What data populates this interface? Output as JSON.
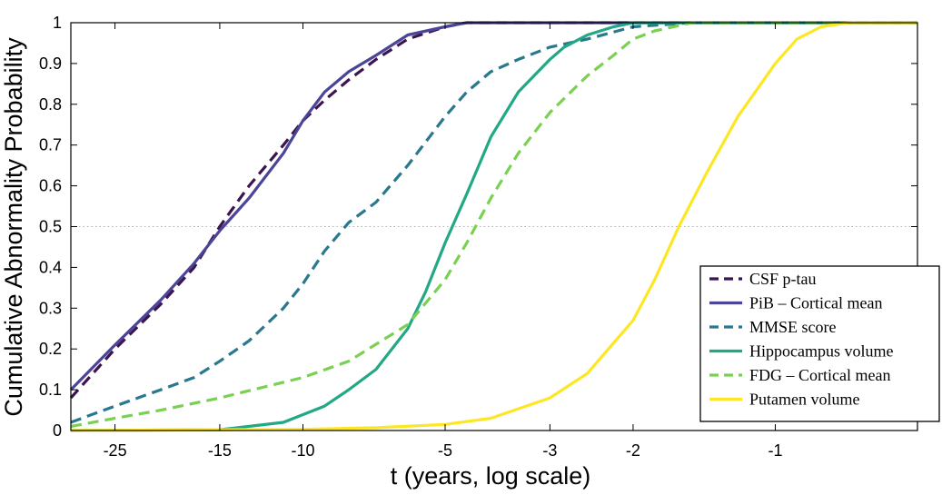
{
  "chart_data": {
    "type": "line",
    "xlabel": "t (years, log scale)",
    "ylabel": "Cumulative Abnormality Probability",
    "xscale": "log of negative time",
    "xlim": [
      -31,
      -0.5
    ],
    "ylim": [
      0,
      1
    ],
    "grid": false,
    "reference_line": {
      "y": 0.5,
      "style": "dotted"
    },
    "legend_position": "bottom-right",
    "xticks": [
      {
        "value": -25,
        "label": "-25"
      },
      {
        "value": -15,
        "label": "-15"
      },
      {
        "value": -10,
        "label": "-10"
      },
      {
        "value": -5,
        "label": "-5"
      },
      {
        "value": -3,
        "label": "-3"
      },
      {
        "value": -2,
        "label": "-2"
      },
      {
        "value": -1,
        "label": "-1"
      }
    ],
    "yticks": [
      {
        "value": 0,
        "label": "0"
      },
      {
        "value": 0.1,
        "label": "0.1"
      },
      {
        "value": 0.2,
        "label": "0.2"
      },
      {
        "value": 0.3,
        "label": "0.3"
      },
      {
        "value": 0.4,
        "label": "0.4"
      },
      {
        "value": 0.5,
        "label": "0.5"
      },
      {
        "value": 0.6,
        "label": "0.6"
      },
      {
        "value": 0.7,
        "label": "0.7"
      },
      {
        "value": 0.8,
        "label": "0.8"
      },
      {
        "value": 0.9,
        "label": "0.9"
      },
      {
        "value": 1,
        "label": "1"
      }
    ],
    "series": [
      {
        "name": "CSF p-tau",
        "color": "#3c1450",
        "dash": true,
        "x": [
          -31,
          -25,
          -20,
          -17,
          -15,
          -13,
          -11,
          -10,
          -9,
          -8,
          -7,
          -6,
          -5,
          -4.5,
          -3,
          -0.5
        ],
        "y": [
          0.08,
          0.2,
          0.31,
          0.4,
          0.5,
          0.6,
          0.7,
          0.76,
          0.81,
          0.86,
          0.91,
          0.96,
          0.99,
          1.0,
          1.0,
          1.0
        ]
      },
      {
        "name": "PiB – Cortical mean",
        "color": "#4a4596",
        "dash": false,
        "x": [
          -31,
          -25,
          -20,
          -17,
          -15,
          -13,
          -11,
          -10,
          -9,
          -8,
          -7,
          -6,
          -5,
          -4.5,
          -3,
          -0.5
        ],
        "y": [
          0.1,
          0.21,
          0.32,
          0.41,
          0.49,
          0.57,
          0.68,
          0.76,
          0.83,
          0.88,
          0.92,
          0.97,
          0.99,
          1.0,
          1.0,
          1.0
        ]
      },
      {
        "name": "MMSE score",
        "color": "#2a788e",
        "dash": true,
        "x": [
          -31,
          -25,
          -20,
          -17,
          -15,
          -13,
          -11,
          -10,
          -9,
          -8,
          -7,
          -6,
          -5,
          -4.5,
          -4,
          -3.5,
          -3,
          -2.5,
          -2,
          -1.5,
          -0.5
        ],
        "y": [
          0.02,
          0.06,
          0.1,
          0.13,
          0.17,
          0.22,
          0.3,
          0.36,
          0.44,
          0.51,
          0.56,
          0.65,
          0.77,
          0.83,
          0.88,
          0.91,
          0.94,
          0.96,
          0.99,
          1.0,
          1.0
        ]
      },
      {
        "name": "Hippocampus volume",
        "color": "#22a884",
        "dash": false,
        "x": [
          -31,
          -15,
          -11,
          -9,
          -8,
          -7,
          -6,
          -5.5,
          -5,
          -4.5,
          -4,
          -3.5,
          -3,
          -2.8,
          -2.5,
          -2.2,
          -2,
          -0.5
        ],
        "y": [
          0,
          0.002,
          0.02,
          0.06,
          0.1,
          0.15,
          0.25,
          0.34,
          0.46,
          0.58,
          0.72,
          0.83,
          0.91,
          0.94,
          0.97,
          0.99,
          1.0,
          1.0
        ]
      },
      {
        "name": "FDG – Cortical mean",
        "color": "#7ad151",
        "dash": true,
        "x": [
          -31,
          -25,
          -20,
          -15,
          -10,
          -8,
          -6,
          -5,
          -4.5,
          -4,
          -3.5,
          -3,
          -2.5,
          -2.2,
          -2,
          -1.8,
          -1.5,
          -0.5
        ],
        "y": [
          0.01,
          0.03,
          0.05,
          0.08,
          0.13,
          0.17,
          0.26,
          0.37,
          0.46,
          0.57,
          0.68,
          0.78,
          0.87,
          0.92,
          0.96,
          0.98,
          1.0,
          1.0
        ]
      },
      {
        "name": "Putamen volume",
        "color": "#fde725",
        "dash": false,
        "x": [
          -31,
          -10,
          -7,
          -5,
          -4,
          -3,
          -2.5,
          -2,
          -1.8,
          -1.6,
          -1.4,
          -1.2,
          -1,
          -0.9,
          -0.8,
          -0.7,
          -0.5
        ],
        "y": [
          0,
          0.003,
          0.007,
          0.015,
          0.03,
          0.08,
          0.14,
          0.27,
          0.37,
          0.5,
          0.63,
          0.77,
          0.9,
          0.96,
          0.99,
          1.0,
          1.0
        ]
      }
    ]
  }
}
